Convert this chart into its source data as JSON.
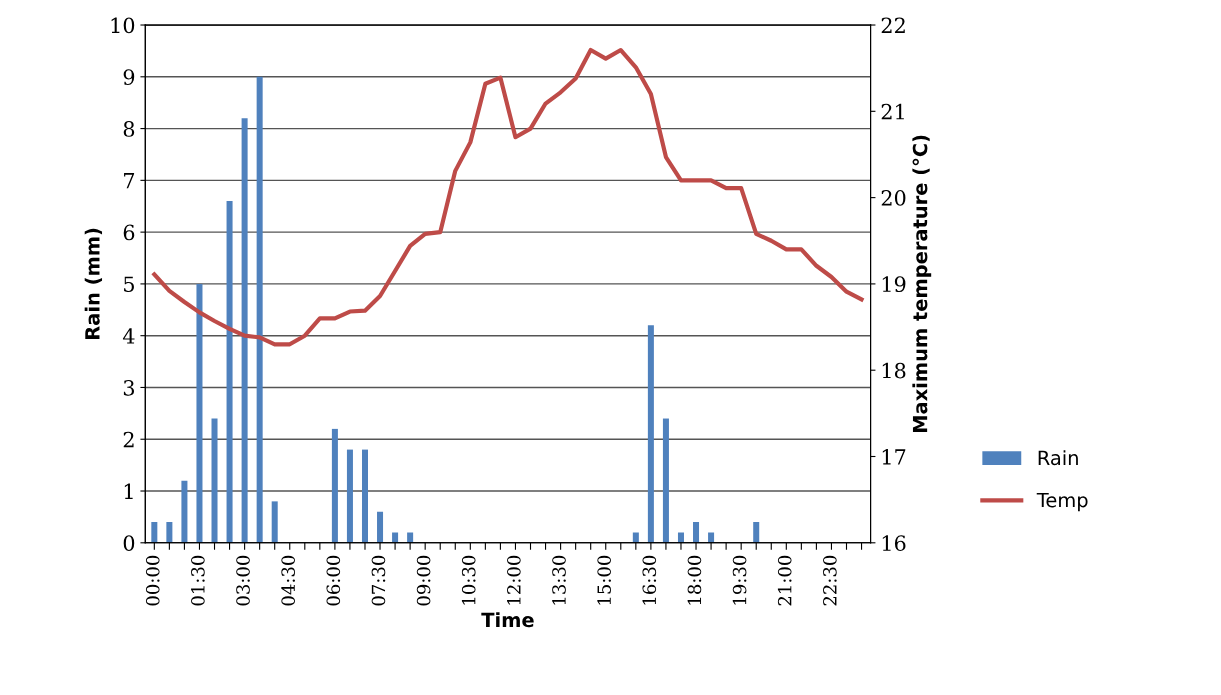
{
  "chart_data": {
    "type": "bar",
    "xlabel": "Time",
    "ylabel": "Rain (mm)",
    "y2label": "Maximum temperature (°C)",
    "categories": [
      "00:00",
      null,
      null,
      "01:30",
      null,
      null,
      "03:00",
      null,
      null,
      "04:30",
      null,
      null,
      "06:00",
      null,
      null,
      "07:30",
      null,
      null,
      "09:00",
      null,
      null,
      "10:30",
      null,
      null,
      "12:00",
      null,
      null,
      "13:30",
      null,
      null,
      "15:00",
      null,
      null,
      "16:30",
      null,
      null,
      "18:00",
      null,
      null,
      "19:30",
      null,
      null,
      "21:00",
      null,
      null,
      "22:30",
      null,
      null
    ],
    "series": [
      {
        "name": "Rain",
        "color": "#4f81bd",
        "values": [
          0.4,
          0.4,
          1.2,
          5.0,
          2.4,
          6.6,
          8.2,
          9.0,
          0.8,
          0,
          0,
          0,
          2.2,
          1.8,
          1.8,
          0.6,
          0.2,
          0.2,
          0,
          0,
          0,
          0,
          0,
          0,
          0,
          0,
          0,
          0,
          0,
          0,
          0,
          0,
          0.2,
          4.2,
          2.4,
          0.2,
          0.4,
          0.2,
          0,
          0,
          0.4,
          0,
          0,
          0,
          0,
          0,
          0,
          0
        ]
      },
      {
        "name": "Temp",
        "type": "line",
        "axis": "y2",
        "color": "#be4b48",
        "values": [
          19.11,
          18.92,
          18.79,
          18.67,
          18.57,
          18.48,
          18.4,
          18.38,
          18.3,
          18.3,
          18.4,
          18.6,
          18.6,
          18.68,
          18.69,
          18.86,
          19.15,
          19.44,
          19.58,
          19.6,
          20.31,
          20.64,
          21.32,
          21.39,
          20.7,
          20.8,
          21.09,
          21.22,
          21.38,
          21.71,
          21.61,
          21.71,
          21.51,
          21.2,
          20.47,
          20.2,
          20.2,
          20.2,
          20.11,
          20.11,
          19.58,
          19.5,
          19.4,
          19.4,
          19.21,
          19.08,
          18.91,
          18.82
        ]
      }
    ],
    "ylim": [
      0,
      10
    ],
    "yticks": [
      0,
      1,
      2,
      3,
      4,
      5,
      6,
      7,
      8,
      9,
      10
    ],
    "y2lim": [
      16,
      22
    ],
    "y2ticks": [
      16,
      17,
      18,
      19,
      20,
      21,
      22
    ],
    "grid": "y",
    "legend": "right",
    "marker": "none",
    "line_style": "solid"
  }
}
